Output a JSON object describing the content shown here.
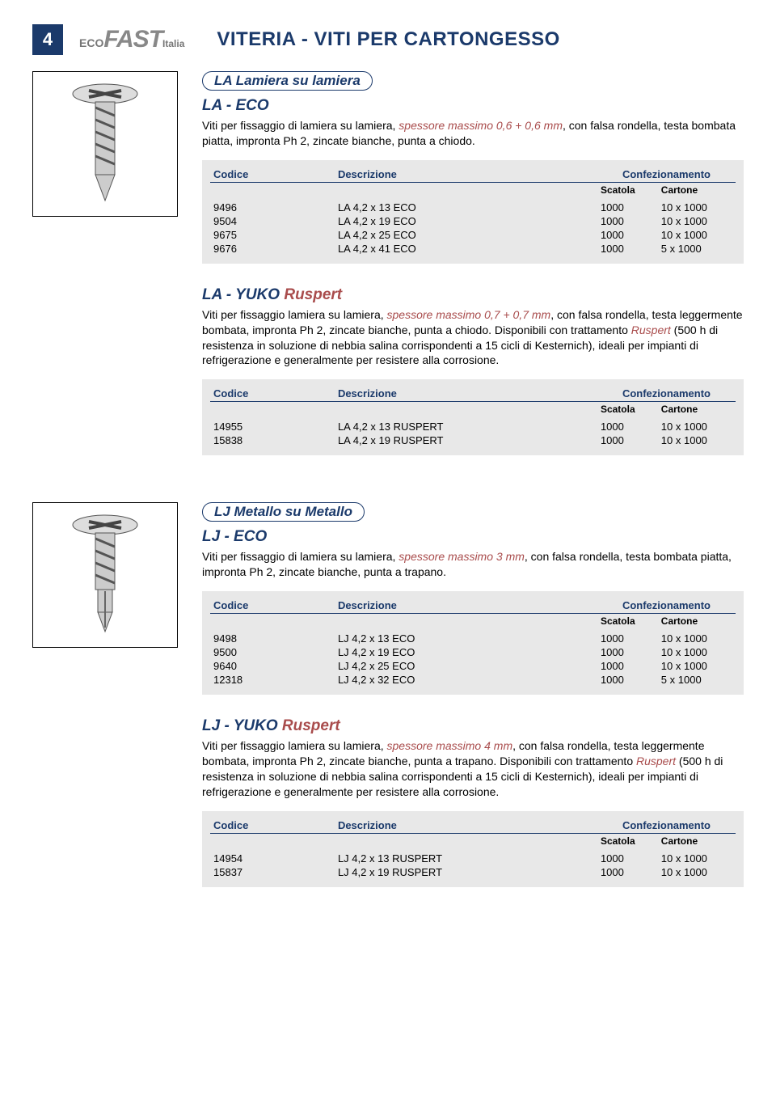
{
  "page_number": "4",
  "logo": {
    "eco": "ECO",
    "fast": "FAST",
    "italia": "Italia"
  },
  "page_title": "VITERIA - VITI PER CARTONGESSO",
  "colors": {
    "brand_blue": "#1b3a6b",
    "accent_red": "#a94c4c",
    "table_bg": "#e8e8e8",
    "text": "#000000",
    "bg": "#ffffff"
  },
  "table_headers": {
    "codice": "Codice",
    "descrizione": "Descrizione",
    "confezionamento": "Confezionamento",
    "scatola": "Scatola",
    "cartone": "Cartone"
  },
  "sections": {
    "la_eco": {
      "pill": "LA Lamiera su lamiera",
      "code": "LA - ECO",
      "desc_pre": "Viti per fissaggio di lamiera su lamiera, ",
      "desc_em": "spessore massimo 0,6 + 0,6 mm",
      "desc_post": ", con falsa rondella, testa bombata piatta, impronta Ph 2, zincate bianche, punta a chiodo.",
      "rows": [
        {
          "codice": "9496",
          "descr": "LA 4,2 x 13 ECO",
          "scatola": "1000",
          "cartone": "10 x 1000"
        },
        {
          "codice": "9504",
          "descr": "LA 4,2 x 19 ECO",
          "scatola": "1000",
          "cartone": "10 x 1000"
        },
        {
          "codice": "9675",
          "descr": "LA 4,2 x 25 ECO",
          "scatola": "1000",
          "cartone": "10 x 1000"
        },
        {
          "codice": "9676",
          "descr": "LA 4,2 x 41 ECO",
          "scatola": "1000",
          "cartone": "5 x 1000"
        }
      ]
    },
    "la_yuko": {
      "code_pre": "LA - YUKO ",
      "code_rus": "Ruspert",
      "desc_pre": "Viti per fissaggio lamiera su lamiera, ",
      "desc_em1": "spessore massimo 0,7 + 0,7 mm",
      "desc_mid": ", con falsa rondella, testa leggermente bombata, impronta Ph 2, zincate bianche, punta a chiodo. Disponibili         con trattamento ",
      "desc_em2": "Ruspert",
      "desc_post": " (500 h di resistenza in soluzione di nebbia salina corrispondenti a 15 cicli di Kesternich), ideali per impianti di refrigerazione e generalmente per resistere alla corrosione.",
      "rows": [
        {
          "codice": "14955",
          "descr": "LA 4,2 x 13 RUSPERT",
          "scatola": "1000",
          "cartone": "10 x 1000"
        },
        {
          "codice": "15838",
          "descr": "LA 4,2 x 19 RUSPERT",
          "scatola": "1000",
          "cartone": "10 x 1000"
        }
      ]
    },
    "lj_eco": {
      "pill": "LJ Metallo su Metallo",
      "code": "LJ - ECO",
      "desc_pre": "Viti per fissaggio di lamiera su lamiera, ",
      "desc_em": "spessore massimo 3 mm",
      "desc_post": ", con falsa rondella, testa bombata piatta, impronta Ph 2, zincate bianche, punta a trapano.",
      "rows": [
        {
          "codice": "9498",
          "descr": "LJ 4,2 x 13 ECO",
          "scatola": "1000",
          "cartone": "10 x 1000"
        },
        {
          "codice": "9500",
          "descr": "LJ 4,2 x 19 ECO",
          "scatola": "1000",
          "cartone": "10 x 1000"
        },
        {
          "codice": "9640",
          "descr": "LJ 4,2 x 25 ECO",
          "scatola": "1000",
          "cartone": "10 x 1000"
        },
        {
          "codice": "12318",
          "descr": "LJ 4,2 x 32 ECO",
          "scatola": "1000",
          "cartone": "5 x 1000"
        }
      ]
    },
    "lj_yuko": {
      "code_pre": "LJ - YUKO ",
      "code_rus": "Ruspert",
      "desc_pre": "Viti per fissaggio lamiera su lamiera, ",
      "desc_em1": "spessore massimo 4 mm",
      "desc_mid": ", con falsa rondella, testa leggermente bombata, impronta Ph 2, zincate bianche, punta a trapano. Disponibili         con trattamento ",
      "desc_em2": "Ruspert",
      "desc_post": " (500 h di resistenza in soluzione di nebbia salina corrispondenti a 15 cicli di Kesternich), ideali per impianti di refrigerazione e generalmente per resistere alla corrosione.",
      "rows": [
        {
          "codice": "14954",
          "descr": "LJ 4,2 x 13 RUSPERT",
          "scatola": "1000",
          "cartone": "10 x 1000"
        },
        {
          "codice": "15837",
          "descr": "LJ 4,2 x 19 RUSPERT",
          "scatola": "1000",
          "cartone": "10 x 1000"
        }
      ]
    }
  }
}
